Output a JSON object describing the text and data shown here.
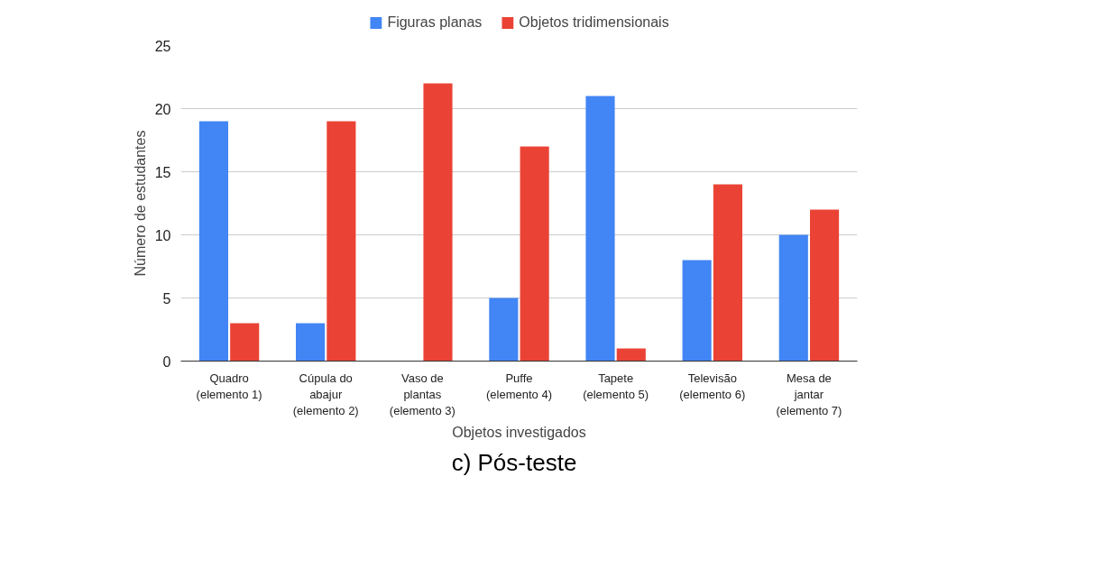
{
  "chart_data": {
    "type": "bar",
    "categories": [
      "Quadro\n(elemento 1)",
      "Cúpula do\nabajur\n(elemento 2)",
      "Vaso de\nplantas\n(elemento 3)",
      "Puffe\n(elemento 4)",
      "Tapete\n(elemento 5)",
      "Televisão\n(elemento 6)",
      "Mesa de\njantar\n(elemento 7)"
    ],
    "series": [
      {
        "name": "Figuras planas",
        "color": "#4285f4",
        "values": [
          19,
          3,
          0,
          5,
          21,
          8,
          10
        ]
      },
      {
        "name": "Objetos tridimensionais",
        "color": "#ea4335",
        "values": [
          3,
          19,
          22,
          17,
          1,
          14,
          12
        ]
      }
    ],
    "xlabel": "Objetos investigados",
    "ylabel": "Número de estudantes",
    "ylim": [
      0,
      25
    ],
    "yticks": [
      0,
      5,
      10,
      15,
      20,
      25
    ],
    "grid": "y",
    "legend": "top",
    "annotations": [
      "c) Pós-teste"
    ]
  }
}
